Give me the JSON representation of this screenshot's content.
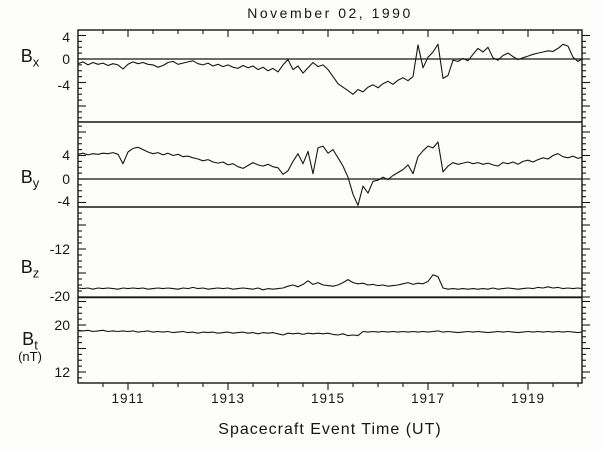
{
  "colors": {
    "line": "#161616",
    "background": "#fdfdfc"
  },
  "chart_data": {
    "type": "line",
    "title": "November 02, 1990",
    "xlabel": "Spacecraft Event Time (UT)",
    "x_start": 1910.0,
    "x_step": 0.1,
    "x_range": [
      1910.0,
      1920.1
    ],
    "xticks": [
      {
        "v": 1911,
        "label": "1911"
      },
      {
        "v": 1913,
        "label": "1913"
      },
      {
        "v": 1915,
        "label": "1915"
      },
      {
        "v": 1917,
        "label": "1917"
      },
      {
        "v": 1919,
        "label": "1919"
      }
    ],
    "panels": [
      {
        "id": "bx",
        "label_base": "B",
        "label_sub": "x",
        "unit": "",
        "ylim": [
          -10.7,
          4.9
        ],
        "refline": 0,
        "yticks": [
          {
            "v": 4,
            "label": "4"
          },
          {
            "v": 0,
            "label": "0"
          },
          {
            "v": -4,
            "label": "-4"
          }
        ],
        "values": [
          -0.8,
          -0.5,
          -1.0,
          -0.6,
          -0.9,
          -0.7,
          -1.1,
          -0.8,
          -1.0,
          -1.7,
          -0.9,
          -0.5,
          -0.8,
          -0.6,
          -0.9,
          -1.0,
          -1.4,
          -1.1,
          -0.6,
          -0.4,
          -0.9,
          -0.7,
          -0.5,
          -0.3,
          -0.8,
          -1.0,
          -0.7,
          -1.2,
          -0.9,
          -1.3,
          -1.0,
          -1.4,
          -1.6,
          -1.1,
          -1.5,
          -1.2,
          -1.8,
          -1.4,
          -2.0,
          -1.6,
          -2.2,
          -1.0,
          -0.1,
          -1.8,
          -1.2,
          -2.4,
          -1.5,
          -0.6,
          -1.3,
          -1.0,
          -1.8,
          -3.0,
          -4.2,
          -4.8,
          -5.4,
          -6.0,
          -5.2,
          -5.6,
          -4.8,
          -4.4,
          -4.9,
          -4.2,
          -3.8,
          -4.3,
          -3.6,
          -3.2,
          -3.7,
          -3.0,
          2.4,
          -1.5,
          0.3,
          1.2,
          2.5,
          -3.3,
          -2.8,
          -0.2,
          -0.4,
          0.1,
          -0.3,
          0.8,
          1.8,
          1.2,
          2.0,
          0.2,
          -0.2,
          0.6,
          1.0,
          0.4,
          -0.1,
          0.2,
          0.5,
          0.8,
          1.0,
          1.2,
          1.4,
          1.3,
          1.8,
          2.5,
          2.2,
          0.3,
          -0.4,
          0.0
        ]
      },
      {
        "id": "by",
        "label_base": "B",
        "label_sub": "y",
        "unit": "",
        "ylim": [
          -4.8,
          9.7
        ],
        "refline": 0,
        "yticks": [
          {
            "v": 4,
            "label": "4"
          },
          {
            "v": 0,
            "label": "0"
          },
          {
            "v": -4,
            "label": "-4"
          }
        ],
        "values": [
          4.2,
          4.4,
          4.1,
          4.3,
          4.2,
          4.4,
          4.3,
          4.5,
          4.2,
          2.6,
          4.6,
          5.2,
          5.4,
          5.0,
          4.6,
          4.3,
          4.5,
          4.1,
          4.4,
          4.0,
          4.2,
          3.8,
          3.9,
          3.6,
          3.4,
          3.1,
          3.3,
          2.9,
          2.7,
          2.9,
          2.4,
          2.6,
          2.1,
          1.8,
          2.3,
          2.8,
          2.4,
          2.2,
          2.5,
          2.1,
          1.9,
          0.8,
          1.4,
          3.0,
          4.3,
          2.6,
          4.7,
          0.9,
          5.3,
          5.6,
          4.4,
          5.0,
          3.6,
          2.2,
          0.3,
          -2.6,
          -4.5,
          -1.2,
          -2.4,
          -0.4,
          -0.2,
          0.3,
          -0.1,
          0.6,
          1.1,
          1.6,
          2.4,
          0.9,
          3.8,
          4.8,
          5.6,
          5.3,
          6.3,
          1.2,
          2.2,
          2.8,
          2.5,
          2.7,
          2.9,
          2.6,
          2.8,
          2.5,
          2.7,
          2.4,
          2.2,
          2.8,
          2.6,
          2.9,
          2.5,
          3.0,
          3.2,
          2.9,
          3.3,
          3.6,
          3.4,
          4.0,
          4.3,
          3.8,
          3.6,
          3.9,
          3.5,
          3.7
        ]
      },
      {
        "id": "bz",
        "label_base": "B",
        "label_sub": "z",
        "unit": "",
        "ylim": [
          -20,
          -5
        ],
        "refline": -20,
        "yticks": [
          {
            "v": -12,
            "label": "-12"
          },
          {
            "v": -20,
            "label": "-20"
          }
        ],
        "values": [
          -18.5,
          -18.6,
          -18.5,
          -18.7,
          -18.5,
          -18.6,
          -18.5,
          -18.6,
          -18.7,
          -18.5,
          -18.6,
          -18.5,
          -18.6,
          -18.5,
          -18.7,
          -18.6,
          -18.5,
          -18.6,
          -18.5,
          -18.6,
          -18.7,
          -18.5,
          -18.6,
          -18.4,
          -18.6,
          -18.5,
          -18.7,
          -18.6,
          -18.5,
          -18.6,
          -18.5,
          -18.7,
          -18.6,
          -18.5,
          -18.6,
          -18.7,
          -18.5,
          -18.8,
          -18.6,
          -18.7,
          -18.6,
          -18.5,
          -18.2,
          -18.0,
          -18.3,
          -17.9,
          -17.3,
          -17.9,
          -17.6,
          -18.0,
          -18.1,
          -18.2,
          -18.0,
          -17.6,
          -17.1,
          -17.6,
          -17.8,
          -17.7,
          -18.0,
          -17.9,
          -18.1,
          -18.0,
          -18.2,
          -18.1,
          -18.0,
          -17.8,
          -17.6,
          -17.9,
          -17.7,
          -17.8,
          -17.4,
          -16.3,
          -16.6,
          -18.5,
          -18.7,
          -18.6,
          -18.7,
          -18.6,
          -18.7,
          -18.6,
          -18.7,
          -18.6,
          -18.7,
          -18.5,
          -18.7,
          -18.6,
          -18.5,
          -18.6,
          -18.7,
          -18.6,
          -18.5,
          -18.6,
          -18.4,
          -18.5,
          -18.3,
          -18.5,
          -18.4,
          -18.6,
          -18.5,
          -18.6,
          -18.5,
          -18.6
        ]
      },
      {
        "id": "bt",
        "label_base": "B",
        "label_sub": "t",
        "unit": "(nT)",
        "ylim": [
          10.1,
          24.6
        ],
        "refline": null,
        "yticks": [
          {
            "v": 20,
            "label": "20"
          },
          {
            "v": 12,
            "label": "12"
          }
        ],
        "values": [
          19.1,
          19.0,
          19.1,
          18.9,
          19.0,
          19.1,
          18.9,
          19.0,
          18.9,
          19.0,
          18.9,
          19.0,
          18.8,
          18.9,
          19.0,
          18.8,
          18.9,
          18.8,
          18.9,
          18.7,
          18.8,
          18.9,
          18.7,
          18.8,
          18.6,
          18.8,
          18.7,
          18.8,
          18.6,
          18.7,
          18.8,
          18.6,
          18.7,
          18.8,
          18.6,
          18.7,
          18.5,
          18.7,
          18.6,
          18.7,
          18.5,
          18.3,
          18.6,
          18.5,
          18.6,
          18.4,
          18.6,
          18.5,
          18.6,
          18.5,
          18.6,
          18.4,
          18.3,
          18.5,
          18.2,
          18.3,
          18.2,
          18.9,
          18.8,
          18.9,
          18.8,
          18.9,
          18.8,
          18.9,
          18.8,
          18.9,
          18.8,
          18.9,
          18.8,
          18.9,
          18.8,
          18.9,
          19.0,
          18.8,
          18.9,
          18.8,
          18.7,
          18.8,
          18.9,
          18.8,
          18.9,
          18.8,
          18.7,
          18.8,
          18.9,
          18.8,
          18.9,
          18.8,
          18.7,
          18.8,
          18.9,
          18.8,
          18.9,
          18.8,
          18.9,
          18.8,
          18.9,
          18.8,
          18.9,
          18.8,
          18.7,
          18.8
        ]
      }
    ]
  }
}
